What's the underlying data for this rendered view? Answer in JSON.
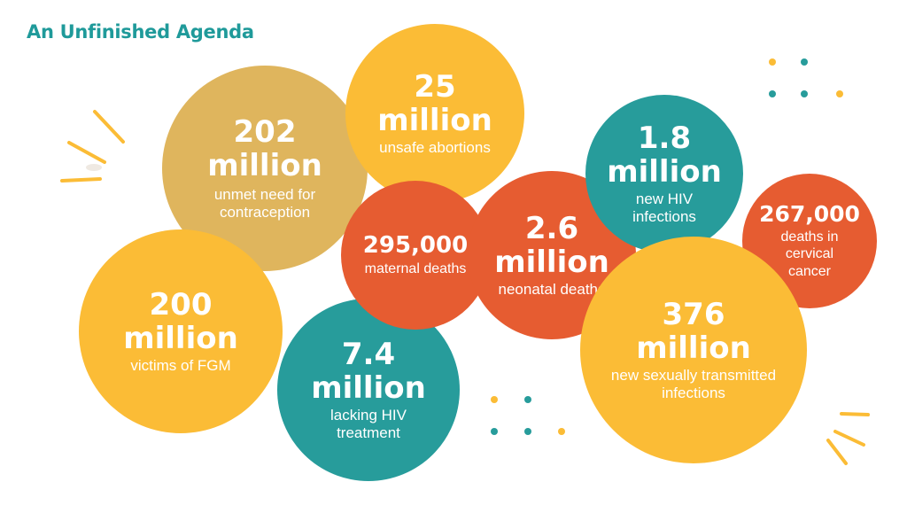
{
  "title": "An Unfinished Agenda",
  "bubbles": {
    "unmet_need": {
      "number_line1": "202",
      "number_line2": "million",
      "label_line1": "unmet need for",
      "label_line2": "contraception"
    },
    "unsafe_abortions": {
      "number_line1": "25",
      "number_line2": "million",
      "label_line1": "unsafe abortions"
    },
    "fgm": {
      "number_line1": "200",
      "number_line2": "million",
      "label_line1": "victims of FGM"
    },
    "hiv_treatment": {
      "number_line1": "7.4",
      "number_line2": "million",
      "label_line1": "lacking HIV",
      "label_line2": "treatment"
    },
    "maternal_deaths": {
      "number_line1": "295,000",
      "label_line1": "maternal deaths"
    },
    "neonatal_deaths": {
      "number_line1": "2.6",
      "number_line2": "million",
      "label_line1": "neonatal deaths"
    },
    "hiv_infections": {
      "number_line1": "1.8",
      "number_line2": "million",
      "label_line1": "new HIV",
      "label_line2": "infections"
    },
    "cervical_cancer": {
      "number_line1": "267,000",
      "label_line1": "deaths in",
      "label_line2": "cervical",
      "label_line3": "cancer"
    },
    "sti": {
      "number_line1": "376",
      "number_line2": "million",
      "label_line1": "new sexually transmitted",
      "label_line2": "infections"
    }
  },
  "colors": {
    "title": "#1f9a9a",
    "gold": "#dfb55d",
    "yellow": "#fbbc36",
    "teal": "#279c9b",
    "orange": "#e65c31"
  }
}
